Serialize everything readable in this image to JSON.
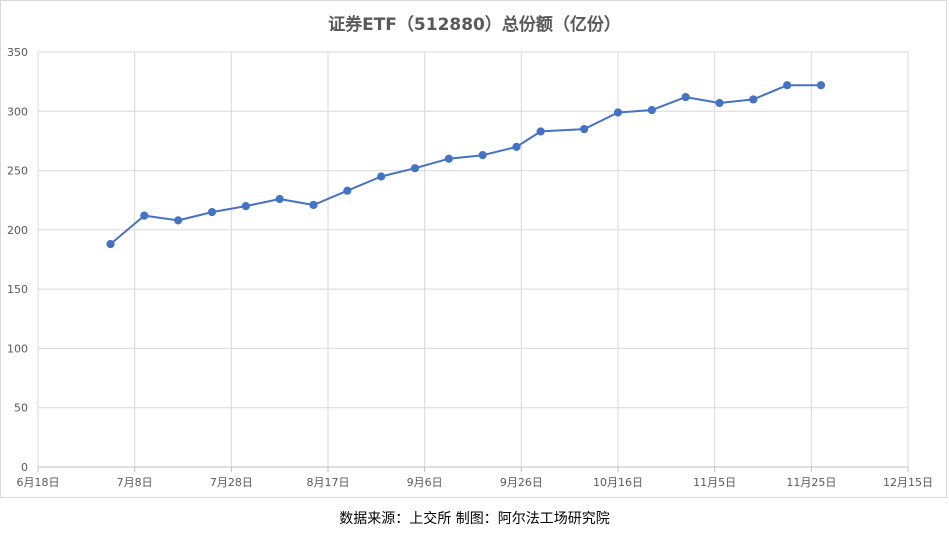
{
  "chart_data": {
    "type": "line",
    "title": "证券ETF（512880）总份额（亿份）",
    "xlabel": "",
    "ylabel": "",
    "ylim": [
      0,
      350
    ],
    "y_ticks": [
      0,
      50,
      100,
      150,
      200,
      250,
      300,
      350
    ],
    "x_range": [
      "2020-06-18",
      "2020-12-15"
    ],
    "x_tick_dates": [
      "2020-06-18",
      "2020-07-08",
      "2020-07-28",
      "2020-08-17",
      "2020-09-06",
      "2020-09-26",
      "2020-10-16",
      "2020-11-05",
      "2020-11-25",
      "2020-12-15"
    ],
    "x_tick_labels": [
      "6月18日",
      "7月8日",
      "7月28日",
      "8月17日",
      "9月6日",
      "9月26日",
      "10月16日",
      "11月5日",
      "11月25日",
      "12月15日"
    ],
    "grid": true,
    "line_color": "#4472c4",
    "series": [
      {
        "name": "",
        "points": [
          {
            "x": "2020-07-03",
            "y": 188
          },
          {
            "x": "2020-07-10",
            "y": 212
          },
          {
            "x": "2020-07-17",
            "y": 208
          },
          {
            "x": "2020-07-24",
            "y": 215
          },
          {
            "x": "2020-07-31",
            "y": 220
          },
          {
            "x": "2020-08-07",
            "y": 226
          },
          {
            "x": "2020-08-14",
            "y": 221
          },
          {
            "x": "2020-08-21",
            "y": 233
          },
          {
            "x": "2020-08-28",
            "y": 245
          },
          {
            "x": "2020-09-04",
            "y": 252
          },
          {
            "x": "2020-09-11",
            "y": 260
          },
          {
            "x": "2020-09-18",
            "y": 263
          },
          {
            "x": "2020-09-25",
            "y": 270
          },
          {
            "x": "2020-09-30",
            "y": 283
          },
          {
            "x": "2020-10-09",
            "y": 285
          },
          {
            "x": "2020-10-16",
            "y": 299
          },
          {
            "x": "2020-10-23",
            "y": 301
          },
          {
            "x": "2020-10-30",
            "y": 312
          },
          {
            "x": "2020-11-06",
            "y": 307
          },
          {
            "x": "2020-11-13",
            "y": 310
          },
          {
            "x": "2020-11-20",
            "y": 322
          },
          {
            "x": "2020-11-27",
            "y": 322
          }
        ]
      }
    ]
  },
  "source_note": "数据来源：上交所  制图：阿尔法工场研究院"
}
